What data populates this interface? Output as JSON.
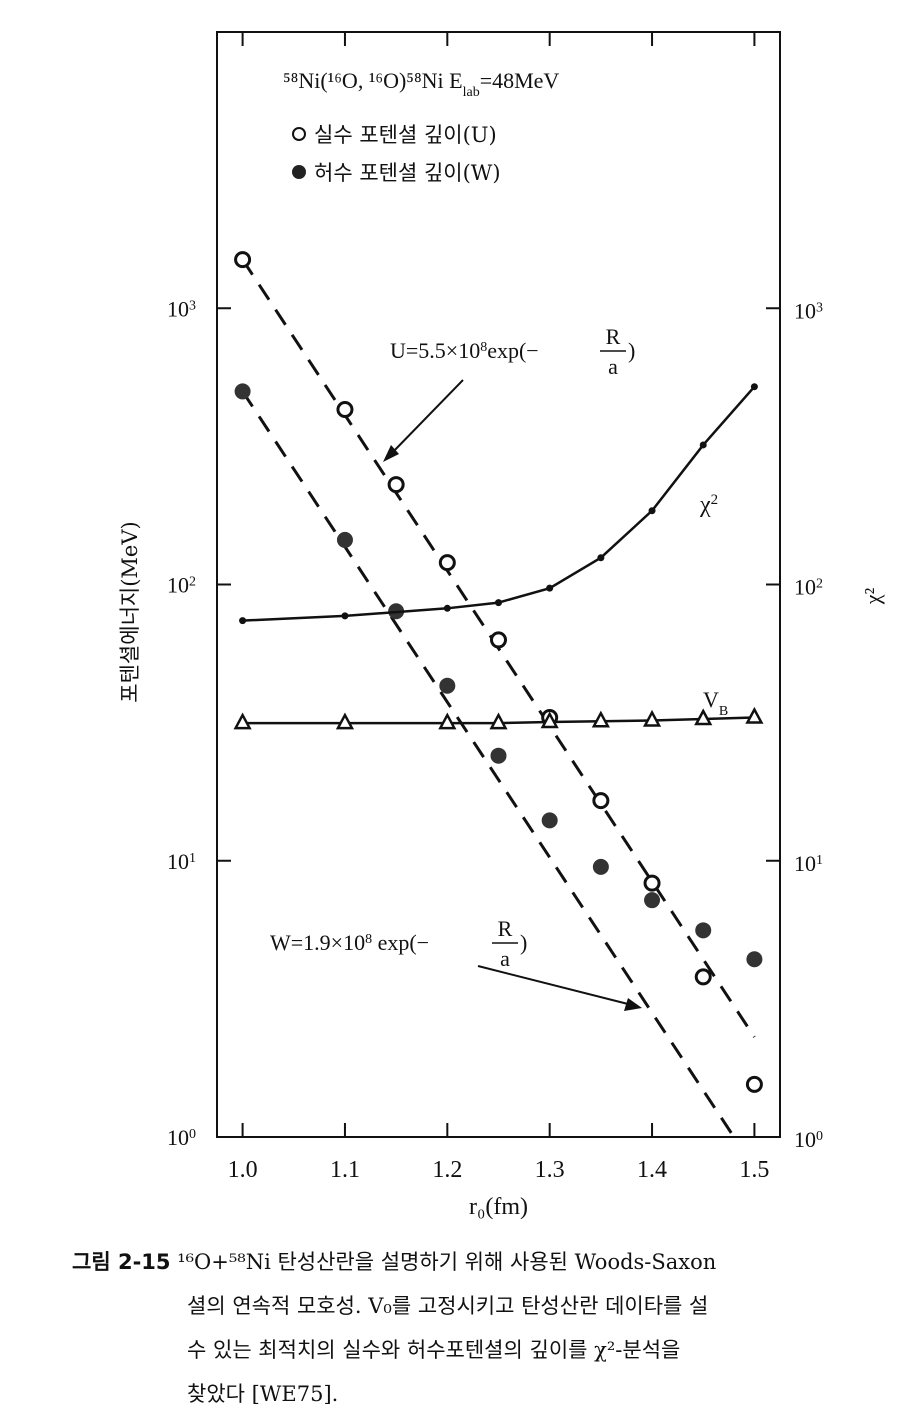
{
  "chart_data": {
    "type": "scatter",
    "title": "⁵⁸Ni(¹⁶O, ¹⁶O)⁵⁸Ni E_lab=48MeV",
    "title_parts": {
      "reaction": "⁵⁸Ni(¹⁶O, ¹⁶O)⁵⁸Ni",
      "elab_label": "E",
      "elab_sub": "lab",
      "elab_value": "=48MeV"
    },
    "xlabel": "r₀(fm)",
    "ylabel": "포텐셜에너지(MeV)",
    "ylabel_right": "χ²",
    "xlim": [
      0.975,
      1.525
    ],
    "ylim": [
      1,
      10000
    ],
    "y_scale": "log",
    "x_ticks": [
      "1.0",
      "1.1",
      "1.2",
      "1.3",
      "1.4",
      "1.5"
    ],
    "x_tick_values": [
      1.0,
      1.1,
      1.2,
      1.3,
      1.4,
      1.5
    ],
    "y_ticks": [
      1,
      10,
      100,
      1000
    ],
    "y_tick_labels": [
      {
        "base": "10",
        "exp": "0"
      },
      {
        "base": "10",
        "exp": "1"
      },
      {
        "base": "10",
        "exp": "2"
      },
      {
        "base": "10",
        "exp": "3"
      }
    ],
    "legend_position": "top-left",
    "legend": [
      {
        "marker": "open-circle",
        "label": "실수 포텐셜 깊이(U)"
      },
      {
        "marker": "filled-circle",
        "label": "허수 포텐셜 깊이(W)"
      }
    ],
    "series": [
      {
        "name": "실수 포텐셜 깊이(U)",
        "marker": "open-circle",
        "x": [
          1.0,
          1.1,
          1.15,
          1.2,
          1.25,
          1.3,
          1.35,
          1.4,
          1.45,
          1.5
        ],
        "y": [
          1500,
          430,
          230,
          120,
          63,
          33,
          16.5,
          8.3,
          3.8,
          1.55
        ]
      },
      {
        "name": "허수 포텐셜 깊이(W)",
        "marker": "filled-circle",
        "x": [
          1.0,
          1.1,
          1.15,
          1.2,
          1.25,
          1.3,
          1.35,
          1.4,
          1.45,
          1.5
        ],
        "y": [
          500,
          145,
          80,
          43,
          24,
          14,
          9.5,
          7.2,
          5.6,
          4.4
        ]
      },
      {
        "name": "χ²",
        "marker": "small-dot",
        "connected": true,
        "x": [
          1.0,
          1.1,
          1.2,
          1.25,
          1.3,
          1.35,
          1.4,
          1.45,
          1.5
        ],
        "y": [
          74,
          77,
          82,
          86,
          97,
          125,
          185,
          320,
          520
        ]
      },
      {
        "name": "V_B",
        "marker": "open-triangle",
        "connected": true,
        "x": [
          1.0,
          1.1,
          1.2,
          1.25,
          1.3,
          1.35,
          1.4,
          1.45,
          1.5
        ],
        "y": [
          31.5,
          31.5,
          31.5,
          31.5,
          31.8,
          32,
          32.2,
          32.6,
          33
        ]
      }
    ],
    "fits": [
      {
        "name": "U",
        "style": "dashed",
        "x": [
          1.0,
          1.5
        ],
        "y": [
          1500,
          2.3
        ]
      },
      {
        "name": "W",
        "style": "dashed",
        "x": [
          1.0,
          1.48
        ],
        "y": [
          500,
          1
        ]
      }
    ],
    "annotations": {
      "u_fit": {
        "lead": "U=5.5×10",
        "exp": "8",
        "tail": "exp(−",
        "num": "R",
        "den": "a",
        "close": ")"
      },
      "w_fit": {
        "lead": "W=1.9×10",
        "exp": "8",
        "tail": " exp(−",
        "num": "R",
        "den": "a",
        "close": ")"
      },
      "chi2": {
        "base": "χ",
        "exp": "2"
      },
      "vb": {
        "base": "V",
        "sub": "B"
      }
    }
  },
  "caption": {
    "number": "그림 2-15",
    "lines": [
      "¹⁶O+⁵⁸Ni 탄성산란을 설명하기 위해 사용된 Woods-Saxon",
      "셜의 연속적 모호성. V₀를 고정시키고 탄성산란 데이타를 설",
      "수 있는 최적치의 실수와 허수포텐셜의 깊이를 χ²-분석을",
      "찾았다 [WE75]."
    ]
  }
}
